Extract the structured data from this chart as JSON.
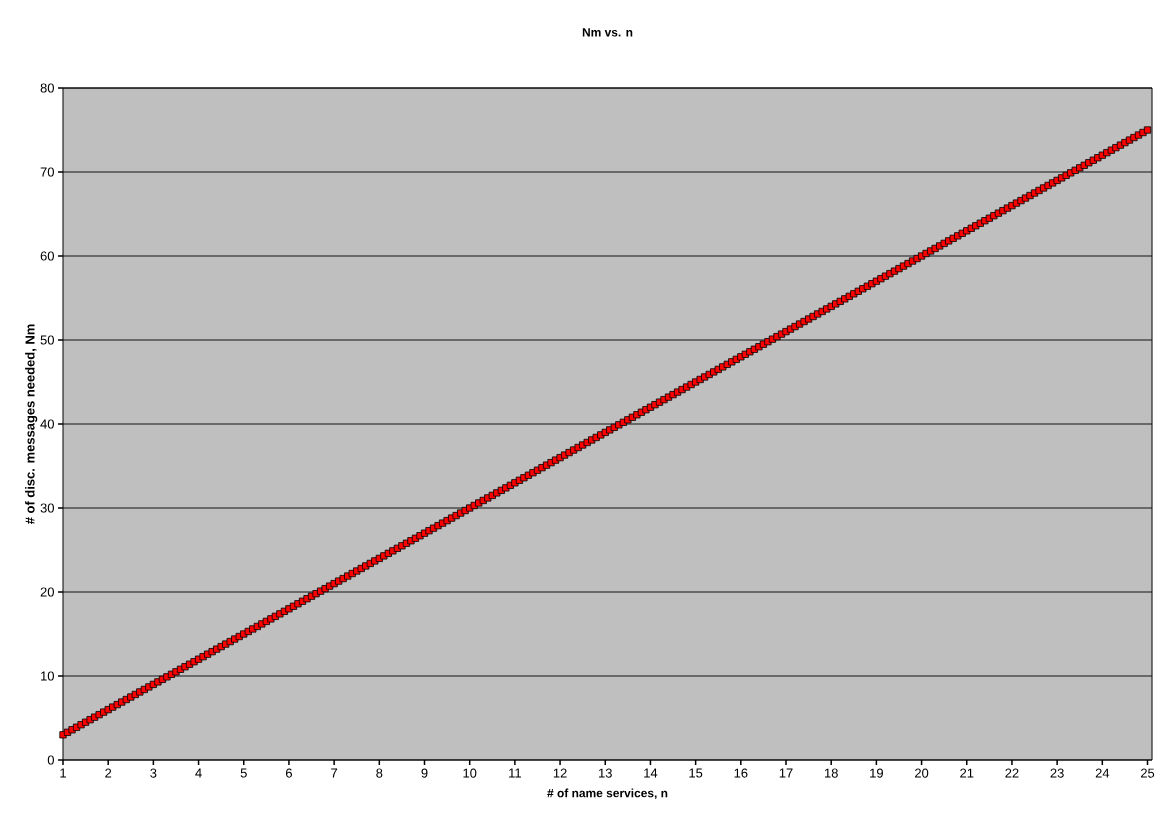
{
  "chart_data": {
    "type": "scatter",
    "title": "Nm vs. n",
    "xlabel": "# of name services, n",
    "ylabel": "# of disc. messages needed, Nm",
    "x": [
      1,
      1.1,
      1.2,
      1.3,
      1.4,
      1.5,
      1.6,
      1.7,
      1.8,
      1.9,
      2,
      2.1,
      2.2,
      2.3,
      2.4,
      2.5,
      2.6,
      2.7,
      2.8,
      2.9,
      3,
      3.1,
      3.2,
      3.3,
      3.4,
      3.5,
      3.6,
      3.7,
      3.8,
      3.9,
      4,
      4.1,
      4.2,
      4.3,
      4.4,
      4.5,
      4.6,
      4.7,
      4.8,
      4.9,
      5,
      5.1,
      5.2,
      5.3,
      5.4,
      5.5,
      5.6,
      5.7,
      5.8,
      5.9,
      6,
      6.1,
      6.2,
      6.3,
      6.4,
      6.5,
      6.6,
      6.7,
      6.8,
      6.9,
      7,
      7.1,
      7.2,
      7.3,
      7.4,
      7.5,
      7.6,
      7.7,
      7.8,
      7.9,
      8,
      8.1,
      8.2,
      8.3,
      8.4,
      8.5,
      8.6,
      8.7,
      8.8,
      8.9,
      9,
      9.1,
      9.2,
      9.3,
      9.4,
      9.5,
      9.6,
      9.7,
      9.8,
      9.9,
      10,
      10.1,
      10.2,
      10.3,
      10.4,
      10.5,
      10.6,
      10.7,
      10.8,
      10.9,
      11,
      11.1,
      11.2,
      11.3,
      11.4,
      11.5,
      11.6,
      11.7,
      11.8,
      11.9,
      12,
      12.1,
      12.2,
      12.3,
      12.4,
      12.5,
      12.6,
      12.7,
      12.8,
      12.9,
      13,
      13.1,
      13.2,
      13.3,
      13.4,
      13.5,
      13.6,
      13.7,
      13.8,
      13.9,
      14,
      14.1,
      14.2,
      14.3,
      14.4,
      14.5,
      14.6,
      14.7,
      14.8,
      14.9,
      15,
      15.1,
      15.2,
      15.3,
      15.4,
      15.5,
      15.6,
      15.7,
      15.8,
      15.9,
      16,
      16.1,
      16.2,
      16.3,
      16.4,
      16.5,
      16.6,
      16.7,
      16.8,
      16.9,
      17,
      17.1,
      17.2,
      17.3,
      17.4,
      17.5,
      17.6,
      17.7,
      17.8,
      17.9,
      18,
      18.1,
      18.2,
      18.3,
      18.4,
      18.5,
      18.6,
      18.7,
      18.8,
      18.9,
      19,
      19.1,
      19.2,
      19.3,
      19.4,
      19.5,
      19.6,
      19.7,
      19.8,
      19.9,
      20,
      20.1,
      20.2,
      20.3,
      20.4,
      20.5,
      20.6,
      20.7,
      20.8,
      20.9,
      21,
      21.1,
      21.2,
      21.3,
      21.4,
      21.5,
      21.6,
      21.7,
      21.8,
      21.9,
      22,
      22.1,
      22.2,
      22.3,
      22.4,
      22.5,
      22.6,
      22.7,
      22.8,
      22.9,
      23,
      23.1,
      23.2,
      23.3,
      23.4,
      23.5,
      23.6,
      23.7,
      23.8,
      23.9,
      24,
      24.1,
      24.2,
      24.3,
      24.4,
      24.5,
      24.6,
      24.7,
      24.8,
      24.9,
      25
    ],
    "series": [
      {
        "color": "#ff0000",
        "values": [
          3,
          3.3,
          3.6,
          3.9,
          4.2,
          4.5,
          4.8,
          5.1,
          5.4,
          5.7,
          6,
          6.3,
          6.6,
          6.9,
          7.2,
          7.5,
          7.8,
          8.1,
          8.4,
          8.7,
          9,
          9.3,
          9.6,
          9.9,
          10.2,
          10.5,
          10.8,
          11.1,
          11.4,
          11.7,
          12,
          12.3,
          12.6,
          12.9,
          13.2,
          13.5,
          13.8,
          14.1,
          14.4,
          14.7,
          15,
          15.3,
          15.6,
          15.9,
          16.2,
          16.5,
          16.8,
          17.1,
          17.4,
          17.7,
          18,
          18.3,
          18.6,
          18.9,
          19.2,
          19.5,
          19.8,
          20.1,
          20.4,
          20.7,
          21,
          21.3,
          21.6,
          21.9,
          22.2,
          22.5,
          22.8,
          23.1,
          23.4,
          23.7,
          24,
          24.3,
          24.6,
          24.9,
          25.2,
          25.5,
          25.8,
          26.1,
          26.4,
          26.7,
          27,
          27.3,
          27.6,
          27.9,
          28.2,
          28.5,
          28.8,
          29.1,
          29.4,
          29.7,
          30,
          30.3,
          30.6,
          30.9,
          31.2,
          31.5,
          31.8,
          32.1,
          32.4,
          32.7,
          33,
          33.3,
          33.6,
          33.9,
          34.2,
          34.5,
          34.8,
          35.1,
          35.4,
          35.7,
          36,
          36.3,
          36.6,
          36.9,
          37.2,
          37.5,
          37.8,
          38.1,
          38.4,
          38.7,
          39,
          39.3,
          39.6,
          39.9,
          40.2,
          40.5,
          40.8,
          41.1,
          41.4,
          41.7,
          42,
          42.3,
          42.6,
          42.9,
          43.2,
          43.5,
          43.8,
          44.1,
          44.4,
          44.7,
          45,
          45.3,
          45.6,
          45.9,
          46.2,
          46.5,
          46.8,
          47.1,
          47.4,
          47.7,
          48,
          48.3,
          48.6,
          48.9,
          49.2,
          49.5,
          49.8,
          50.1,
          50.4,
          50.7,
          51,
          51.3,
          51.6,
          51.9,
          52.2,
          52.5,
          52.8,
          53.1,
          53.4,
          53.7,
          54,
          54.3,
          54.6,
          54.9,
          55.2,
          55.5,
          55.8,
          56.1,
          56.4,
          56.7,
          57,
          57.3,
          57.6,
          57.9,
          58.2,
          58.5,
          58.8,
          59.1,
          59.4,
          59.7,
          60,
          60.3,
          60.6,
          60.9,
          61.2,
          61.5,
          61.8,
          62.1,
          62.4,
          62.7,
          63,
          63.3,
          63.6,
          63.9,
          64.2,
          64.5,
          64.8,
          65.1,
          65.4,
          65.7,
          66,
          66.3,
          66.6,
          66.9,
          67.2,
          67.5,
          67.8,
          68.1,
          68.4,
          68.7,
          69,
          69.3,
          69.6,
          69.9,
          70.2,
          70.5,
          70.8,
          71.1,
          71.4,
          71.7,
          72,
          72.3,
          72.6,
          72.9,
          73.2,
          73.5,
          73.8,
          74.1,
          74.4,
          74.7,
          75
        ]
      }
    ],
    "xlim": [
      1,
      25.1
    ],
    "xticks": [
      1,
      2,
      3,
      4,
      5,
      6,
      7,
      8,
      9,
      10,
      11,
      12,
      13,
      14,
      15,
      16,
      17,
      18,
      19,
      20,
      21,
      22,
      23,
      24,
      25
    ],
    "ylim": [
      0,
      80
    ],
    "yticks": [
      0,
      10,
      20,
      30,
      40,
      50,
      60,
      70,
      80
    ],
    "grid": "y",
    "marker": "square"
  }
}
